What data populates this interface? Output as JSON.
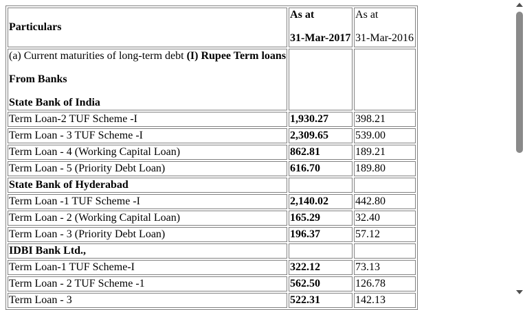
{
  "header": {
    "particulars": "Particulars",
    "col1_line1": "As at",
    "col1_line2": "31-Mar-2017",
    "col2_line1": "As at",
    "col2_line2": "31-Mar-2016"
  },
  "intro": {
    "prefix": "(a) Current maturities of long-term debt ",
    "heading": "(I) Rupee Term loans",
    "from_banks": "From Banks",
    "bank": "State Bank of India"
  },
  "rows": [
    {
      "label": "Term Loan-2 TUF Scheme -I",
      "v2017": "1,930.27",
      "v2016": "398.21"
    },
    {
      "label": "Term Loan - 3 TUF Scheme -I",
      "v2017": "2,309.65",
      "v2016": "539.00"
    },
    {
      "label": "Term Loan - 4 (Working Capital Loan)",
      "v2017": "862.81",
      "v2016": "189.21"
    },
    {
      "label": "Term Loan - 5 (Priority Debt Loan)",
      "v2017": "616.70",
      "v2016": "189.80"
    },
    {
      "label": "State Bank of Hyderabad",
      "v2017": "",
      "v2016": ""
    },
    {
      "label": "Term Loan -1 TUF Scheme -I",
      "v2017": "2,140.02",
      "v2016": "442.80"
    },
    {
      "label": "Term Loan - 2 (Working Capital Loan)",
      "v2017": "165.29",
      "v2016": "32.40"
    },
    {
      "label": "Term Loan - 3 (Priority Debt Loan)",
      "v2017": "196.37",
      "v2016": "57.12"
    },
    {
      "label": "IDBI Bank Ltd.,",
      "v2017": "",
      "v2016": ""
    },
    {
      "label": "Term Loan-1 TUF Scheme-I",
      "v2017": "322.12",
      "v2016": "73.13"
    },
    {
      "label": "Term Loan - 2 TUF Scheme -1",
      "v2017": "562.50",
      "v2016": "126.78"
    },
    {
      "label": "Term Loan - 3",
      "v2017": "522.31",
      "v2016": "142.13"
    }
  ]
}
